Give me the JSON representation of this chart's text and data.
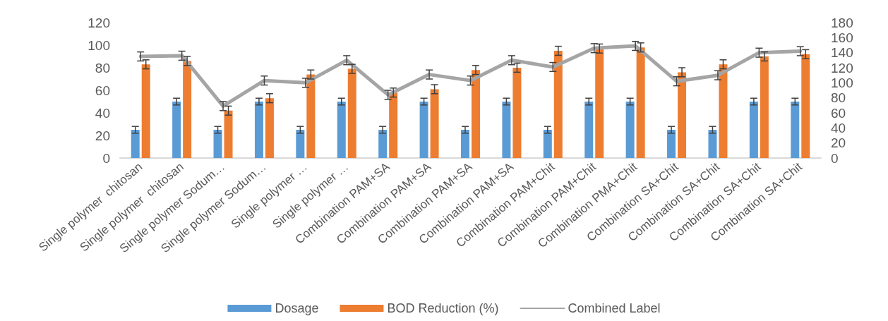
{
  "chart_data": {
    "type": "bar",
    "categories": [
      "Single polymer  chitosan",
      "Single polymer  chitosan",
      "Single polymer Sodum…",
      "Single polymer Sodum…",
      "Single polymer …",
      "Single polymer …",
      "Combination PAM+SA",
      "Combination PAM+SA",
      "Combination PAM+SA",
      "Combination PAM+SA",
      "Combination PAM+Chit",
      "Combination PAM+Chit",
      "Combination PMA+Chit",
      "Combination SA+Chit",
      "Combination SA+Chit",
      "Combination SA+Chit",
      "Combination SA+Chit"
    ],
    "series": [
      {
        "name": "Dosage",
        "color": "#5b9bd5",
        "values": [
          25,
          50,
          25,
          50,
          25,
          50,
          25,
          50,
          25,
          50,
          25,
          50,
          50,
          25,
          25,
          50,
          50
        ],
        "errors": [
          3,
          3,
          3,
          3,
          3,
          3,
          3,
          3,
          3,
          3,
          3,
          3,
          3,
          3,
          3,
          3,
          3
        ]
      },
      {
        "name": "BOD Reduction (%)",
        "color": "#ed7d31",
        "values": [
          83,
          86,
          42,
          53,
          74,
          79,
          58,
          61,
          78,
          80,
          95,
          97,
          98,
          76,
          83,
          90,
          92
        ],
        "errors": [
          4,
          4,
          4,
          4,
          4,
          4,
          4,
          4,
          4,
          4,
          4,
          4,
          4,
          4,
          4,
          4,
          4
        ]
      },
      {
        "name": "Combined Label",
        "type": "line",
        "axis": "y2",
        "color": "#a5a5a5",
        "values": [
          135,
          136,
          69,
          103,
          100,
          130,
          84,
          111,
          103,
          130,
          121,
          146,
          149,
          102,
          110,
          140,
          142
        ],
        "errors": [
          6,
          6,
          6,
          6,
          6,
          6,
          6,
          6,
          6,
          6,
          6,
          6,
          6,
          6,
          6,
          6,
          6
        ]
      }
    ],
    "ylim": [
      0,
      120
    ],
    "yticks": [
      0,
      20,
      40,
      60,
      80,
      100,
      120
    ],
    "y2lim": [
      0,
      180
    ],
    "y2ticks": [
      0,
      20,
      40,
      60,
      80,
      100,
      120,
      140,
      160,
      180
    ],
    "grid": false,
    "legend": "bottom",
    "marker": "none",
    "line_style": "solid"
  }
}
